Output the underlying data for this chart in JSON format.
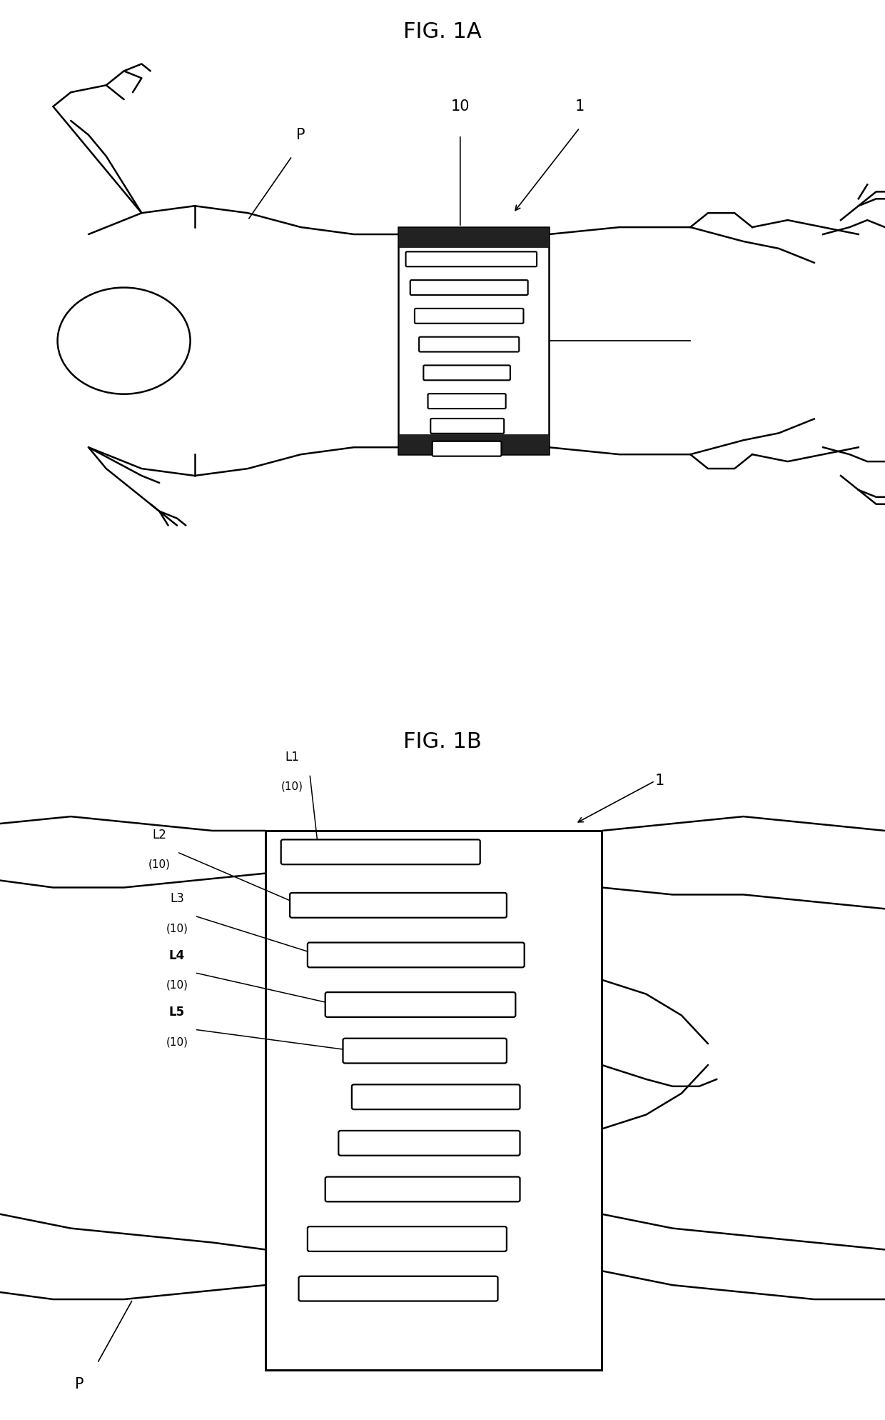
{
  "title_1a": "FIG. 1A",
  "title_1b": "FIG. 1B",
  "label_P_1a": "P",
  "label_10_1a": "10",
  "label_1_1a": "1",
  "label_1_1b": "1",
  "label_P_1b": "P",
  "bg_color": "#ffffff",
  "line_color": "#000000",
  "fig_width": 12.4,
  "fig_height": 19.88
}
